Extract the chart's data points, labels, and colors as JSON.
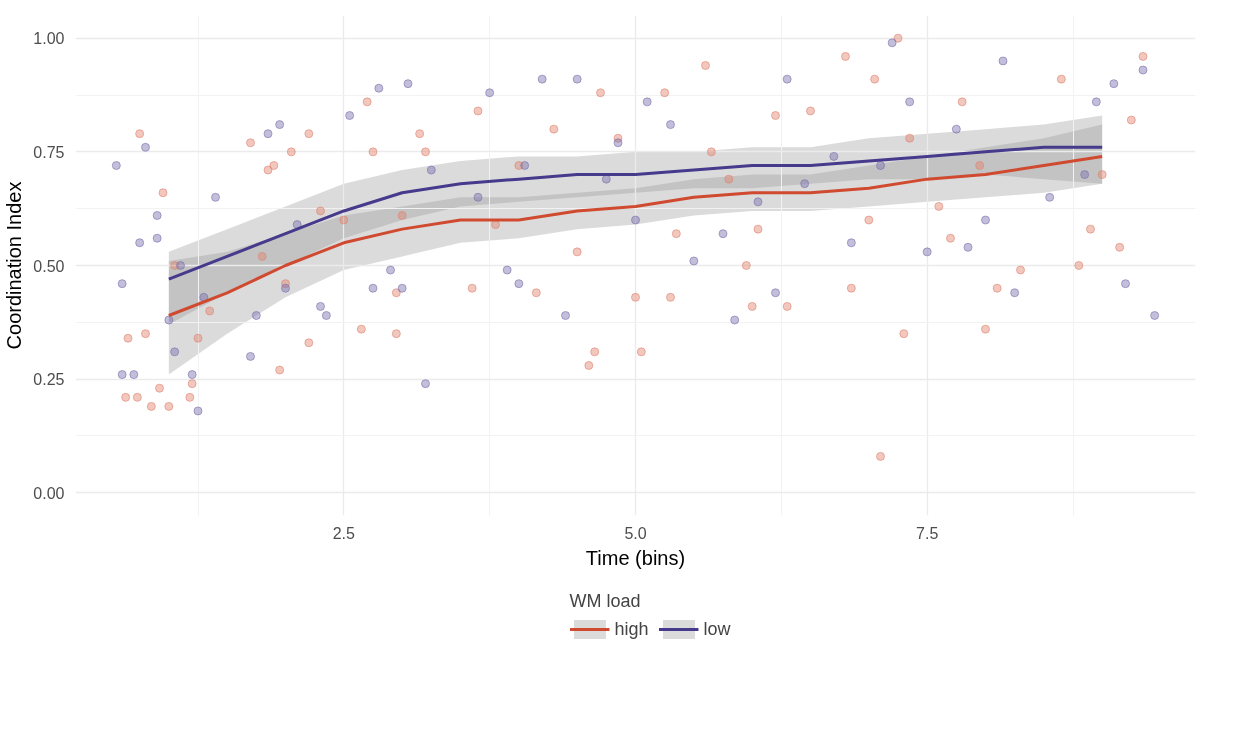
{
  "chart_data": {
    "type": "scatter",
    "xlabel": "Time (bins)",
    "ylabel": "Coordination Index",
    "legend_title": "WM load",
    "xlim": [
      0.2,
      9.8
    ],
    "ylim": [
      -0.05,
      1.05
    ],
    "xticks": [
      2.5,
      {
        "value": 5,
        "label": "5.0"
      },
      7.5
    ],
    "yticks": [
      {
        "value": 0,
        "label": "0.00"
      },
      {
        "value": 0.25,
        "label": "0.25"
      },
      {
        "value": 0.5,
        "label": "0.50"
      },
      {
        "value": 0.75,
        "label": "0.75"
      },
      {
        "value": 1,
        "label": "1.00"
      }
    ],
    "grid": true,
    "legend": "bottom",
    "series": [
      {
        "color": "#e0836f",
        "x": [
          0.75,
          0.65,
          0.63,
          0.73,
          0.8,
          0.85,
          0.92,
          0.95,
          1.0,
          1.05,
          1.18,
          1.2,
          1.25,
          1.35,
          1.7,
          1.8,
          1.85,
          1.9,
          1.95,
          2.0,
          2.05,
          2.2,
          2.2,
          2.3,
          2.5,
          2.65,
          2.7,
          2.75,
          2.95,
          2.95,
          3.0,
          3.15,
          3.2,
          3.6,
          3.65,
          3.8,
          4.0,
          4.15,
          4.3,
          4.5,
          4.6,
          4.65,
          4.7,
          4.85,
          5.0,
          5.05,
          5.25,
          5.3,
          5.35,
          5.6,
          5.65,
          5.8,
          5.95,
          6.0,
          6.05,
          6.2,
          6.3,
          6.5,
          6.8,
          6.85,
          7.0,
          7.05,
          7.1,
          7.25,
          7.3,
          7.35,
          7.6,
          7.7,
          7.8,
          7.95,
          8.0,
          8.1,
          8.3,
          8.65,
          8.8,
          8.9,
          9.0,
          9.15,
          9.25,
          9.35
        ],
        "values": [
          0.79,
          0.34,
          0.21,
          0.21,
          0.35,
          0.19,
          0.23,
          0.66,
          0.19,
          0.5,
          0.21,
          0.24,
          0.34,
          0.4,
          0.77,
          0.52,
          0.71,
          0.72,
          0.27,
          0.46,
          0.75,
          0.79,
          0.33,
          0.62,
          0.6,
          0.36,
          0.86,
          0.75,
          0.44,
          0.35,
          0.61,
          0.79,
          0.75,
          0.45,
          0.84,
          0.59,
          0.72,
          0.44,
          0.8,
          0.53,
          0.28,
          0.31,
          0.88,
          0.78,
          0.43,
          0.31,
          0.88,
          0.43,
          0.57,
          0.94,
          0.75,
          0.69,
          0.5,
          0.41,
          0.58,
          0.83,
          0.41,
          0.84,
          0.96,
          0.45,
          0.6,
          0.91,
          0.08,
          1.0,
          0.35,
          0.78,
          0.63,
          0.56,
          0.86,
          0.72,
          0.36,
          0.45,
          0.49,
          0.91,
          0.5,
          0.58,
          0.7,
          0.54,
          0.82,
          0.96
        ]
      },
      {
        "color": "#7a70ae",
        "x": [
          0.55,
          0.6,
          0.6,
          0.7,
          0.75,
          0.8,
          0.9,
          0.9,
          1.0,
          1.05,
          1.1,
          1.2,
          1.25,
          1.3,
          1.4,
          1.7,
          1.75,
          1.85,
          1.95,
          2.0,
          2.1,
          2.3,
          2.35,
          2.55,
          2.75,
          2.8,
          2.9,
          3.0,
          3.05,
          3.2,
          3.25,
          3.65,
          3.75,
          3.9,
          4.0,
          4.05,
          4.2,
          4.4,
          4.5,
          4.75,
          4.85,
          5.0,
          5.1,
          5.3,
          5.5,
          5.75,
          5.85,
          6.05,
          6.2,
          6.3,
          6.45,
          6.7,
          6.85,
          7.1,
          7.2,
          7.35,
          7.5,
          7.75,
          7.85,
          8.0,
          8.15,
          8.25,
          8.55,
          8.85,
          8.95,
          9.1,
          9.2,
          9.35,
          9.45
        ],
        "values": [
          0.72,
          0.46,
          0.26,
          0.26,
          0.55,
          0.76,
          0.61,
          0.56,
          0.38,
          0.31,
          0.5,
          0.26,
          0.18,
          0.43,
          0.65,
          0.3,
          0.39,
          0.79,
          0.81,
          0.45,
          0.59,
          0.41,
          0.39,
          0.83,
          0.45,
          0.89,
          0.49,
          0.45,
          0.9,
          0.24,
          0.71,
          0.65,
          0.88,
          0.49,
          0.46,
          0.72,
          0.91,
          0.39,
          0.91,
          0.69,
          0.77,
          0.6,
          0.86,
          0.81,
          0.51,
          0.57,
          0.38,
          0.64,
          0.44,
          0.91,
          0.68,
          0.74,
          0.55,
          0.72,
          0.99,
          0.86,
          0.53,
          0.8,
          0.54,
          0.6,
          0.95,
          0.44,
          0.65,
          0.7,
          0.86,
          0.9,
          0.46,
          0.93,
          0.39
        ]
      },
      {
        "type": "line",
        "name": "high",
        "color": "#d04a30",
        "x": [
          1,
          1.5,
          2,
          2.5,
          3,
          3.5,
          4,
          4.5,
          5,
          5.5,
          6,
          6.5,
          7,
          7.5,
          8,
          8.5,
          9
        ],
        "values": [
          0.39,
          0.44,
          0.5,
          0.55,
          0.58,
          0.6,
          0.6,
          0.62,
          0.63,
          0.65,
          0.66,
          0.66,
          0.67,
          0.69,
          0.7,
          0.72,
          0.74
        ],
        "lower": [
          0.26,
          0.35,
          0.43,
          0.49,
          0.52,
          0.55,
          0.56,
          0.58,
          0.59,
          0.61,
          0.62,
          0.62,
          0.63,
          0.64,
          0.65,
          0.66,
          0.68
        ],
        "upper": [
          0.51,
          0.53,
          0.57,
          0.61,
          0.63,
          0.65,
          0.65,
          0.66,
          0.67,
          0.69,
          0.7,
          0.7,
          0.72,
          0.74,
          0.76,
          0.78,
          0.81
        ]
      },
      {
        "type": "line",
        "name": "low",
        "color": "#463a8c",
        "x": [
          1,
          1.5,
          2,
          2.5,
          3,
          3.5,
          4,
          4.5,
          5,
          5.5,
          6,
          6.5,
          7,
          7.5,
          8,
          8.5,
          9
        ],
        "values": [
          0.47,
          0.52,
          0.57,
          0.62,
          0.66,
          0.68,
          0.69,
          0.7,
          0.7,
          0.71,
          0.72,
          0.72,
          0.73,
          0.74,
          0.75,
          0.76,
          0.76
        ],
        "lower": [
          0.37,
          0.44,
          0.5,
          0.56,
          0.6,
          0.63,
          0.64,
          0.65,
          0.66,
          0.67,
          0.67,
          0.68,
          0.69,
          0.69,
          0.7,
          0.69,
          0.68
        ],
        "upper": [
          0.53,
          0.58,
          0.63,
          0.68,
          0.71,
          0.73,
          0.74,
          0.74,
          0.75,
          0.75,
          0.76,
          0.76,
          0.78,
          0.79,
          0.8,
          0.81,
          0.83
        ]
      }
    ]
  }
}
